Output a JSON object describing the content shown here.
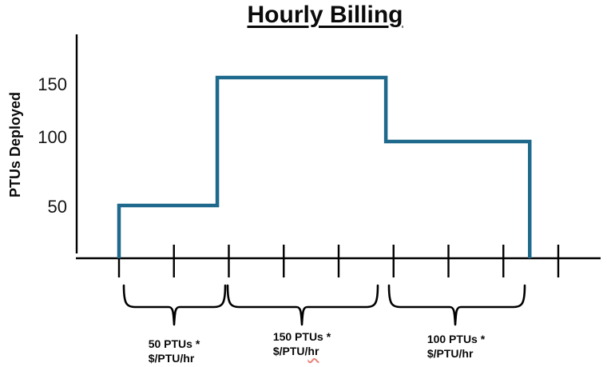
{
  "title": "Hourly Billing",
  "y_axis": {
    "label": "PTUs Deployed",
    "tick_labels": [
      "150",
      "100",
      "50"
    ]
  },
  "chart_data": {
    "type": "line",
    "subtype": "step",
    "title": "Hourly Billing",
    "xlabel": "",
    "ylabel": "PTUs Deployed",
    "yticks": [
      50,
      100,
      150
    ],
    "ylim": [
      0,
      175
    ],
    "x_tick_count": 9,
    "grid": false,
    "legend": "none",
    "line_color": "#1e698c",
    "break_ticks": [
      0,
      1.79,
      4.86,
      7.48
    ],
    "levels": [
      50,
      150,
      100
    ],
    "series": [
      {
        "name": "PTUs Deployed",
        "step_points": [
          [
            0,
            50
          ],
          [
            1.79,
            150
          ],
          [
            4.86,
            100
          ],
          [
            7.48,
            0
          ]
        ]
      }
    ],
    "annotations": [
      "50 PTUs * $/PTU/hr",
      "150 PTUs * $/PTU/hr",
      "100 PTUs * $/PTU/hr"
    ]
  },
  "segments": [
    {
      "line1": "50 PTUs *",
      "line2_prefix": "$/PTU/",
      "line2_hr": "hr"
    },
    {
      "line1": "150 PTUs *",
      "line2_prefix": "$/PTU/",
      "line2_hr": "hr"
    },
    {
      "line1": "100 PTUs *",
      "line2_prefix": "$/PTU/",
      "line2_hr": "hr"
    }
  ],
  "colors": {
    "line": "#1e698c",
    "axis": "#000000",
    "spellcheck_red": "#e8837a"
  }
}
